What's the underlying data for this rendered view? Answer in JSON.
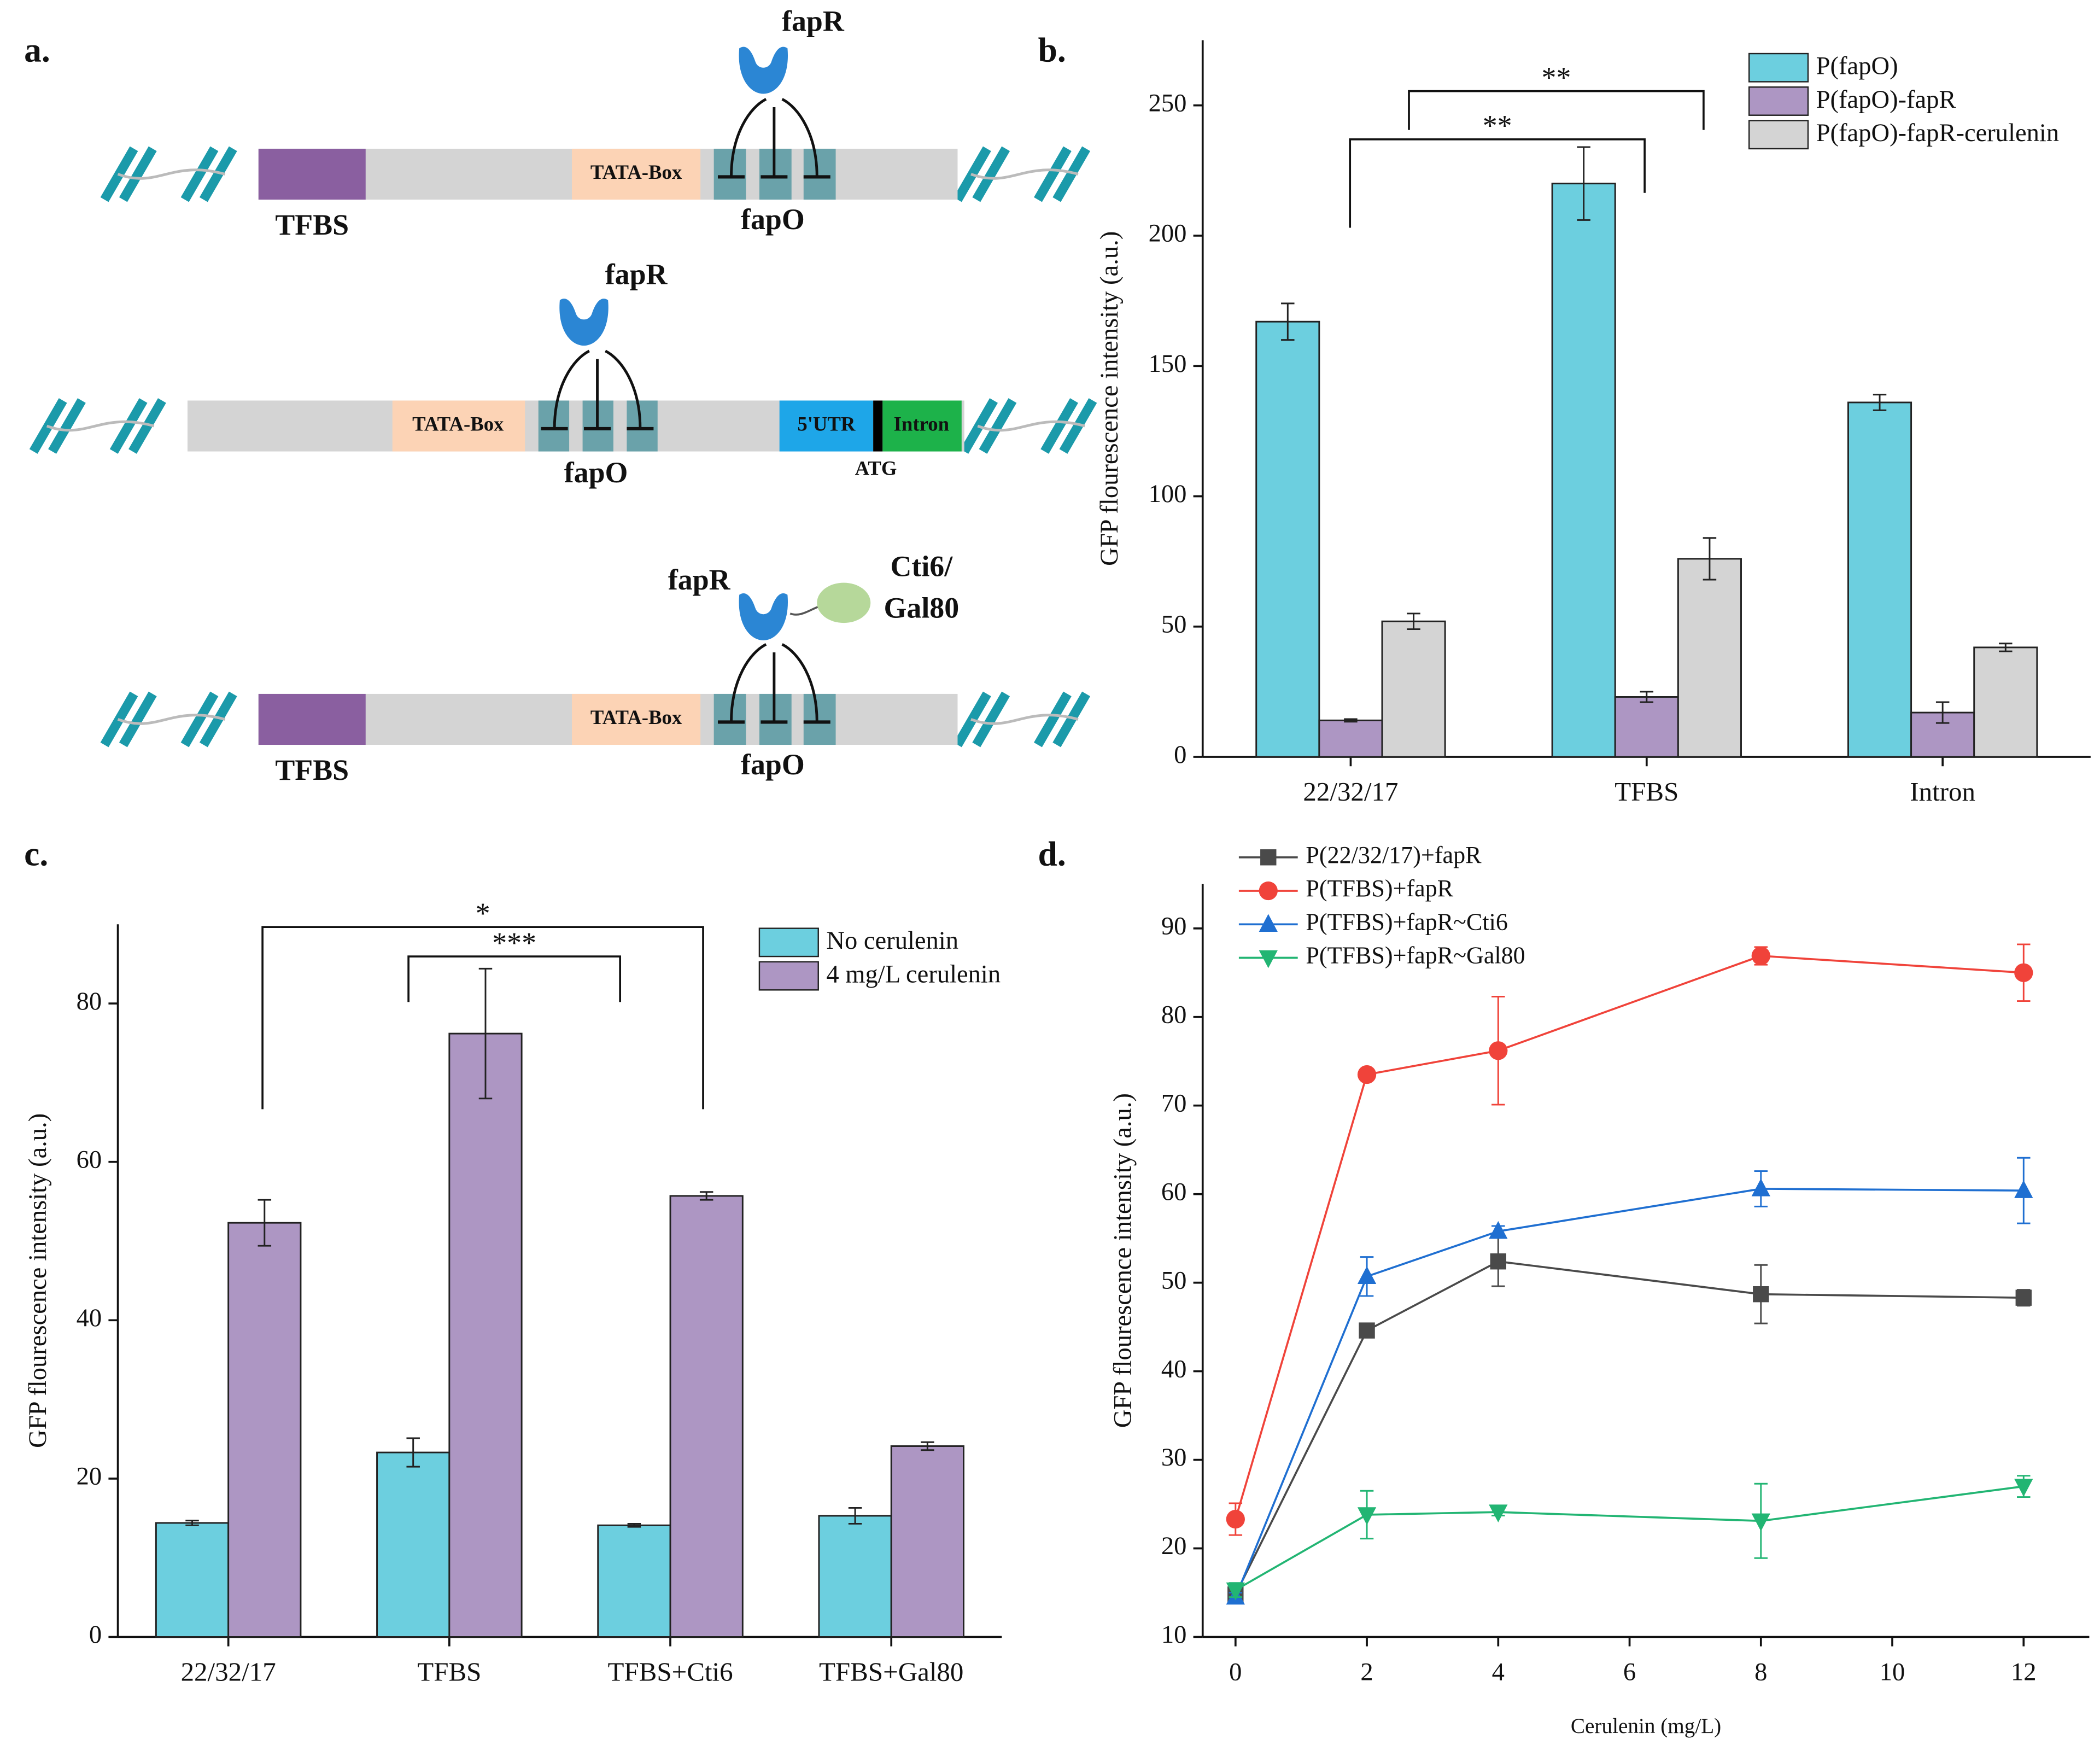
{
  "diagram": {
    "panel": "a.",
    "row1": {
      "protein": "fapR",
      "promoter": "TATA-Box",
      "operator": "fapO",
      "site": "TFBS"
    },
    "row2": {
      "protein": "fapR",
      "promoter": "TATA-Box",
      "operator": "fapO",
      "utr": "5'UTR",
      "intron": "Intron",
      "start": "ATG"
    },
    "row3": {
      "protein": "fapR",
      "fusion1": "Cti6/",
      "fusion2": "Gal80",
      "promoter": "TATA-Box",
      "operator": "fapO",
      "site": "TFBS"
    }
  },
  "chart_data": [
    {
      "type": "bar",
      "panel": "b.",
      "ylabel": "GFP flourescence intensity (a.u.)",
      "categories": [
        "22/32/17",
        "TFBS",
        "Intron"
      ],
      "series": [
        {
          "name": "P(fapO)",
          "color": "#6ccfdf",
          "values": [
            167,
            220,
            136
          ],
          "errors": [
            7,
            14,
            3
          ]
        },
        {
          "name": "P(fapO)-fapR",
          "color": "#ad96c3",
          "values": [
            14,
            23,
            17
          ],
          "errors": [
            0.5,
            2,
            4
          ]
        },
        {
          "name": "P(fapO)-fapR-cerulenin",
          "color": "#d4d4d4",
          "values": [
            52,
            76,
            42
          ],
          "errors": [
            3,
            8,
            1.5
          ]
        }
      ],
      "ylim": [
        0,
        275
      ],
      "yticks": [
        0,
        50,
        100,
        150,
        200,
        250
      ],
      "annotations": [
        "**",
        "**"
      ],
      "legend": "top-right"
    },
    {
      "type": "bar",
      "panel": "c.",
      "ylabel": "GFP flourescence intensity (a.u.)",
      "categories": [
        "22/32/17",
        "TFBS",
        "TFBS+Cti6",
        "TFBS+Gal80"
      ],
      "series": [
        {
          "name": "No cerulenin",
          "color": "#6ccfdf",
          "values": [
            14.4,
            23.3,
            14.1,
            15.3
          ],
          "errors": [
            0.3,
            1.8,
            0.2,
            1
          ]
        },
        {
          "name": "4 mg/L cerulenin",
          "color": "#ad96c3",
          "values": [
            52.3,
            76.2,
            55.7,
            24.1
          ],
          "errors": [
            2.9,
            8.2,
            0.5,
            0.5
          ]
        }
      ],
      "ylim": [
        0,
        90
      ],
      "yticks": [
        0,
        20,
        40,
        60,
        80
      ],
      "annotations": [
        "*",
        "***"
      ],
      "legend": "top-right"
    },
    {
      "type": "line",
      "panel": "d.",
      "ylabel": "GFP flourescence intensity (a.u.)",
      "xlabel": "Cerulenin (mg/L)",
      "x": [
        0,
        2,
        4,
        8,
        12
      ],
      "series": [
        {
          "name": "P(22/32/17)+fapR",
          "color": "#4a4a4a",
          "marker": "square",
          "values": [
            14.8,
            44.6,
            52.4,
            48.7,
            48.3
          ],
          "errors": [
            0.5,
            0.8,
            2.8,
            3.3,
            0.9
          ]
        },
        {
          "name": "P(TFBS)+fapR",
          "color": "#f0433a",
          "marker": "circle",
          "values": [
            23.3,
            73.5,
            76.2,
            86.9,
            85.0
          ],
          "errors": [
            1.8,
            0.5,
            6.1,
            1,
            3.2
          ]
        },
        {
          "name": "P(TFBS)+fapR~Cti6",
          "color": "#1f6fd1",
          "marker": "triangle-up",
          "values": [
            14.5,
            50.7,
            55.8,
            60.6,
            60.4
          ],
          "errors": [
            0.5,
            2.2,
            0.6,
            2,
            3.7
          ]
        },
        {
          "name": "P(TFBS)+fapR~Gal80",
          "color": "#22b573",
          "marker": "triangle-down",
          "values": [
            15.3,
            23.8,
            24.1,
            23.1,
            27.0
          ],
          "errors": [
            0.8,
            2.7,
            0.4,
            4.2,
            1.2
          ]
        }
      ],
      "xlim": [
        -0.5,
        13
      ],
      "xticks": [
        0,
        2,
        4,
        6,
        8,
        10,
        12
      ],
      "ylim": [
        10,
        95
      ],
      "yticks": [
        10,
        20,
        30,
        40,
        50,
        60,
        70,
        80,
        90
      ],
      "legend": "top-left"
    }
  ]
}
